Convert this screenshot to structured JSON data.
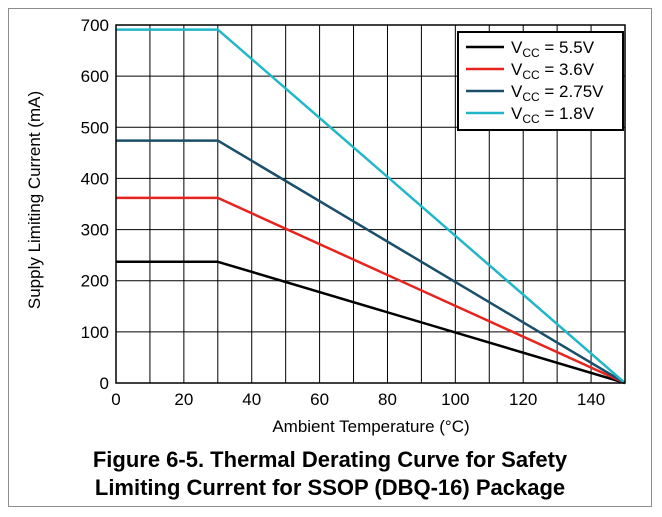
{
  "chart_data": {
    "type": "line",
    "xlabel": "Ambient Temperature (°C)",
    "ylabel": "Supply Limiting Current (mA)",
    "xlim": [
      0,
      150
    ],
    "ylim": [
      0,
      700
    ],
    "xticks": [
      0,
      10,
      20,
      30,
      40,
      50,
      60,
      70,
      80,
      90,
      100,
      110,
      120,
      130,
      140,
      150
    ],
    "xtick_labels": [
      "0",
      "",
      "20",
      "",
      "40",
      "",
      "60",
      "",
      "80",
      "",
      "100",
      "",
      "120",
      "",
      "140",
      ""
    ],
    "yticks": [
      0,
      100,
      200,
      300,
      400,
      500,
      600,
      700
    ],
    "ytick_labels": [
      "0",
      "100",
      "200",
      "300",
      "400",
      "500",
      "600",
      "700"
    ],
    "grid": true,
    "legend_position": "top-right",
    "series": [
      {
        "name": "VCC = 5.5V",
        "legend_main": "V",
        "legend_sub": "CC",
        "legend_rest": " = 5.5V",
        "color": "#000000",
        "x": [
          0,
          30,
          150
        ],
        "y": [
          237,
          237,
          0
        ]
      },
      {
        "name": "VCC = 3.6V",
        "legend_main": "V",
        "legend_sub": "CC",
        "legend_rest": " = 3.6V",
        "color": "#e8231e",
        "x": [
          0,
          30,
          150
        ],
        "y": [
          362,
          362,
          0
        ]
      },
      {
        "name": "VCC = 2.75V",
        "legend_main": "V",
        "legend_sub": "CC",
        "legend_rest": " = 2.75V",
        "color": "#1a4f6b",
        "x": [
          0,
          30,
          150
        ],
        "y": [
          474,
          474,
          0
        ]
      },
      {
        "name": "VCC = 1.8V",
        "legend_main": "V",
        "legend_sub": "CC",
        "legend_rest": " = 1.8V",
        "color": "#21b7c9",
        "x": [
          0,
          30,
          150
        ],
        "y": [
          691,
          691,
          0
        ]
      }
    ]
  },
  "caption": {
    "line1": "Figure 6-5. Thermal Derating Curve for Safety",
    "line2": "Limiting Current for SSOP (DBQ-16) Package"
  }
}
